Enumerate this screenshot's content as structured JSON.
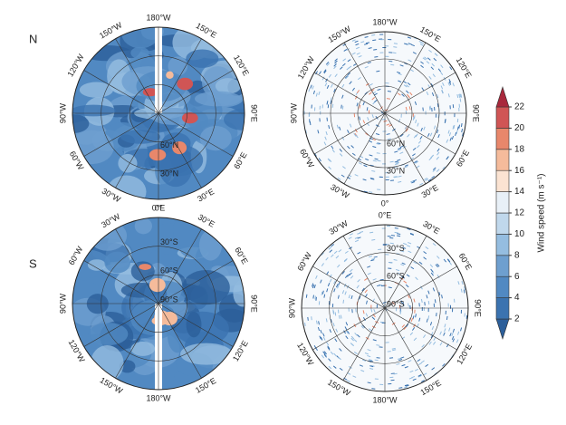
{
  "rows": [
    {
      "label": "N",
      "lon_labels": [
        "180°W",
        "150°E",
        "120°E",
        "90°E",
        "60°E",
        "30°E",
        "0°",
        "30°W",
        "60°W",
        "90°W",
        "120°W",
        "150°W"
      ],
      "lat_labels": [
        "30°N",
        "60°N"
      ]
    },
    {
      "label": "S",
      "lon_labels": [
        "0°E",
        "30°E",
        "60°E",
        "90°E",
        "120°E",
        "150°E",
        "180°W",
        "150°W",
        "120°W",
        "90°W",
        "60°W",
        "30°W"
      ],
      "lat_labels": [
        "30°S",
        "60°S",
        "90°S"
      ]
    }
  ],
  "colorbar": {
    "title": "Wind speed (m s⁻¹)",
    "ticks": [
      2,
      4,
      6,
      8,
      10,
      12,
      14,
      16,
      18,
      20,
      22
    ],
    "colors": [
      "#2c5f9a",
      "#3b73b0",
      "#5189c2",
      "#6e9fcf",
      "#95bde0",
      "#c0d8ec",
      "#e8f0f7",
      "#fbe3d2",
      "#f5bb9b",
      "#e8876b",
      "#d05555",
      "#a8283c"
    ]
  }
}
